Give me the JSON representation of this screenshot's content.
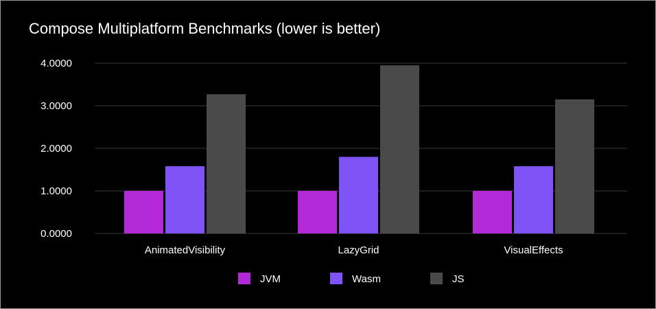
{
  "chart_data": {
    "type": "bar",
    "title": "Compose Multiplatform Benchmarks (lower is better)",
    "categories": [
      "AnimatedVisibility",
      "LazyGrid",
      "VisualEffects"
    ],
    "series": [
      {
        "name": "JVM",
        "values": [
          1.0,
          1.0,
          1.0
        ],
        "color": "#b22ad8"
      },
      {
        "name": "Wasm",
        "values": [
          1.58,
          1.8,
          1.58
        ],
        "color": "#7f52f5"
      },
      {
        "name": "JS",
        "values": [
          3.27,
          3.95,
          3.15
        ],
        "color": "#4a4a4a"
      }
    ],
    "yticks": [
      0,
      1,
      2,
      3,
      4
    ],
    "ytick_labels": [
      "0.0000",
      "1.0000",
      "2.0000",
      "3.0000",
      "4.0000"
    ],
    "ylim": [
      0,
      4
    ],
    "xlabel": "",
    "ylabel": "",
    "grid": true,
    "legend_position": "bottom-center",
    "background": "#000000",
    "gridline_color": "#3a3a3a"
  }
}
